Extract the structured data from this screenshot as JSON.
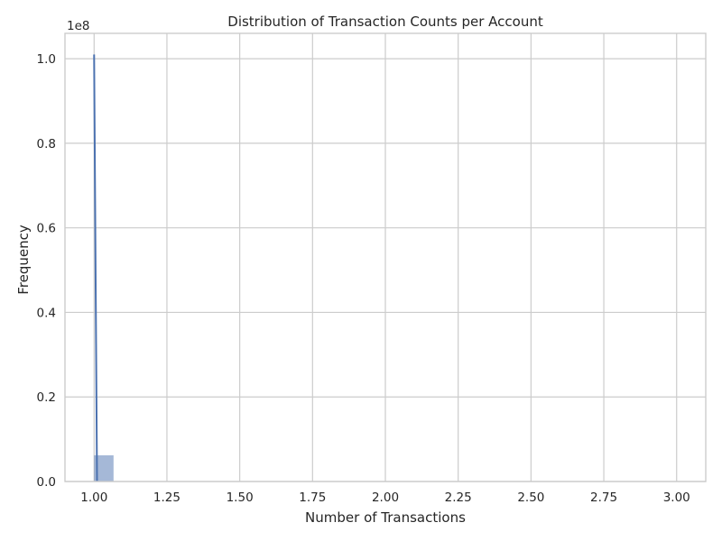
{
  "chart_data": {
    "type": "bar",
    "title": "Distribution of Transaction Counts per Account",
    "xlabel": "Number of Transactions",
    "ylabel": "Frequency",
    "y_offset_label": "1e8",
    "xlim": [
      0.9,
      3.1
    ],
    "ylim": [
      0,
      1.06
    ],
    "grid": true,
    "x_ticks": [
      1.0,
      1.25,
      1.5,
      1.75,
      2.0,
      2.25,
      2.5,
      2.75,
      3.0
    ],
    "x_tick_labels": [
      "1.00",
      "1.25",
      "1.50",
      "1.75",
      "2.00",
      "2.25",
      "2.50",
      "2.75",
      "3.00"
    ],
    "y_ticks": [
      0.0,
      0.2,
      0.4,
      0.6,
      0.8,
      1.0
    ],
    "y_tick_labels": [
      "0.0",
      "0.2",
      "0.4",
      "0.6",
      "0.8",
      "1.0"
    ],
    "histogram": {
      "bin_edges": [
        1.0,
        1.0667
      ],
      "counts": [
        0.062
      ],
      "bar_color": "#4c72b0",
      "bar_opacity": 0.5
    },
    "kde": {
      "name": "",
      "color": "#4c72b0",
      "x": [
        1.0,
        1.005,
        1.01
      ],
      "y": [
        1.01,
        0.5,
        0.0
      ]
    }
  }
}
